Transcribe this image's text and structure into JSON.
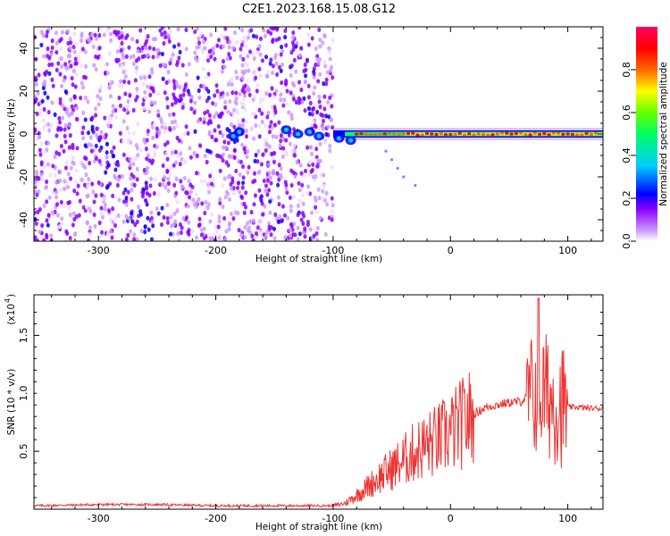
{
  "title": "C2E1.2023.168.15.08.G12",
  "colors": {
    "snr_line": "#ee3333",
    "colormap": [
      "#ffffff",
      "#cc99ff",
      "#8800ff",
      "#0000ff",
      "#00ccff",
      "#00ff66",
      "#66ff00",
      "#ffff00",
      "#ff6600",
      "#ff0000",
      "#ff0066"
    ]
  },
  "chart_data": [
    {
      "type": "heatmap",
      "xlabel": "Height of straight line (km)",
      "ylabel": "Frequency (Hz)",
      "xlim": [
        -355,
        130
      ],
      "ylim": [
        -50,
        50
      ],
      "xticks": [
        -300,
        -200,
        -100,
        0,
        100
      ],
      "yticks": [
        -40,
        -20,
        0,
        20,
        40
      ],
      "colorbar": {
        "label": "Normalized spectral amplitude",
        "range": [
          0.0,
          1.0
        ],
        "ticks": [
          "0.0",
          "0.2",
          "0.4",
          "0.6",
          "0.8"
        ]
      },
      "noise_region_x": [
        -355,
        -100
      ],
      "signal_line_y": 0
    },
    {
      "type": "line",
      "xlabel": "Height of straight line (km)",
      "ylabel": "SNR (10 * v/v)",
      "scale_label": "(x10",
      "scale_exp": "4",
      "xlim": [
        -355,
        130
      ],
      "ylim": [
        0,
        1.85
      ],
      "xticks": [
        -300,
        -200,
        -100,
        0,
        100
      ],
      "yticks": [
        "0.5",
        "1.0",
        "1.5"
      ],
      "series": [
        {
          "x": [
            -355,
            -300,
            -250,
            -200,
            -150,
            -100,
            -90,
            -80,
            -70,
            -60,
            -50,
            -40,
            -30,
            -20,
            -10,
            0,
            10,
            20,
            30,
            40,
            50,
            60,
            65,
            70,
            75,
            80,
            85,
            90,
            95,
            100,
            110,
            120,
            130
          ],
          "y": [
            0.03,
            0.04,
            0.04,
            0.03,
            0.03,
            0.03,
            0.05,
            0.12,
            0.2,
            0.28,
            0.35,
            0.42,
            0.5,
            0.55,
            0.6,
            0.66,
            0.74,
            0.82,
            0.88,
            0.9,
            0.92,
            0.93,
            0.96,
            0.98,
            1.0,
            1.0,
            0.95,
            0.92,
            0.9,
            0.88,
            0.88,
            0.87,
            0.87
          ]
        }
      ]
    }
  ]
}
